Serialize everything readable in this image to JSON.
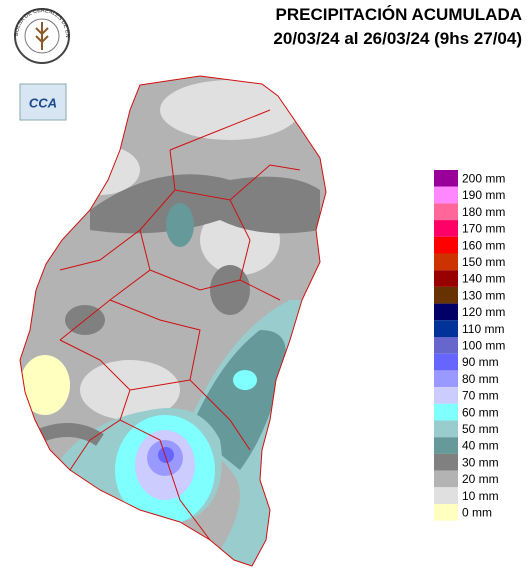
{
  "header": {
    "title": "PRECIPITACIÓN ACUMULADA",
    "period": "20/03/24 al 26/03/24 (9hs 27/04)"
  },
  "logos": {
    "bolsa": "BOLSA DE CEREALES DE ENTRE RIOS",
    "cca": "CCA"
  },
  "legend": {
    "items": [
      {
        "label": "200 mm",
        "color": "#990099"
      },
      {
        "label": "190 mm",
        "color": "#ff88ff"
      },
      {
        "label": "180 mm",
        "color": "#ff6699"
      },
      {
        "label": "170 mm",
        "color": "#ff0066"
      },
      {
        "label": "160 mm",
        "color": "#ff0000"
      },
      {
        "label": "150 mm",
        "color": "#cc3300"
      },
      {
        "label": "140 mm",
        "color": "#990000"
      },
      {
        "label": "130 mm",
        "color": "#663300"
      },
      {
        "label": "120 mm",
        "color": "#000066"
      },
      {
        "label": "110 mm",
        "color": "#003399"
      },
      {
        "label": "100 mm",
        "color": "#6666cc"
      },
      {
        "label": "90 mm",
        "color": "#6666ff"
      },
      {
        "label": "80 mm",
        "color": "#9999ff"
      },
      {
        "label": "70 mm",
        "color": "#ccccff"
      },
      {
        "label": "60 mm",
        "color": "#80ffff"
      },
      {
        "label": "50 mm",
        "color": "#99cccc"
      },
      {
        "label": "40 mm",
        "color": "#669999"
      },
      {
        "label": "30 mm",
        "color": "#808080"
      },
      {
        "label": "20 mm",
        "color": "#b3b3b3"
      },
      {
        "label": "10 mm",
        "color": "#e0e0e0"
      },
      {
        "label": "0 mm",
        "color": "#ffffc0"
      }
    ]
  }
}
